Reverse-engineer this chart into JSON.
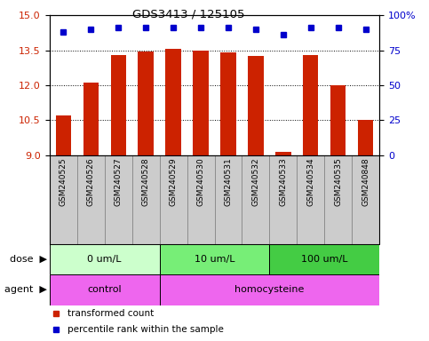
{
  "title": "GDS3413 / 125105",
  "samples": [
    "GSM240525",
    "GSM240526",
    "GSM240527",
    "GSM240528",
    "GSM240529",
    "GSM240530",
    "GSM240531",
    "GSM240532",
    "GSM240533",
    "GSM240534",
    "GSM240535",
    "GSM240848"
  ],
  "transformed_count": [
    10.7,
    12.1,
    13.3,
    13.45,
    13.55,
    13.48,
    13.4,
    13.25,
    9.15,
    13.3,
    12.0,
    10.5
  ],
  "percentile_rank": [
    88,
    90,
    91,
    91,
    91,
    91,
    91,
    90,
    86,
    91,
    91,
    90
  ],
  "ylim_left": [
    9,
    15
  ],
  "ylim_right": [
    0,
    100
  ],
  "yticks_left": [
    9,
    10.5,
    12,
    13.5,
    15
  ],
  "yticks_right": [
    0,
    25,
    50,
    75,
    100
  ],
  "bar_color": "#cc2200",
  "dot_color": "#0000cc",
  "dose_groups": [
    {
      "label": "0 um/L",
      "start": 0,
      "end": 4,
      "color": "#ccffcc"
    },
    {
      "label": "10 um/L",
      "start": 4,
      "end": 8,
      "color": "#77ee77"
    },
    {
      "label": "100 um/L",
      "start": 8,
      "end": 12,
      "color": "#44cc44"
    }
  ],
  "agent_groups": [
    {
      "label": "control",
      "start": 0,
      "end": 4,
      "color": "#ee66ee"
    },
    {
      "label": "homocysteine",
      "start": 4,
      "end": 12,
      "color": "#ee66ee"
    }
  ],
  "dose_label": "dose",
  "agent_label": "agent",
  "legend_items": [
    {
      "label": "transformed count",
      "color": "#cc2200"
    },
    {
      "label": "percentile rank within the sample",
      "color": "#0000cc"
    }
  ],
  "bg_color": "#ffffff",
  "tick_label_color_left": "#cc2200",
  "tick_label_color_right": "#0000cc",
  "sample_bg_color": "#cccccc",
  "sample_border_color": "#888888"
}
